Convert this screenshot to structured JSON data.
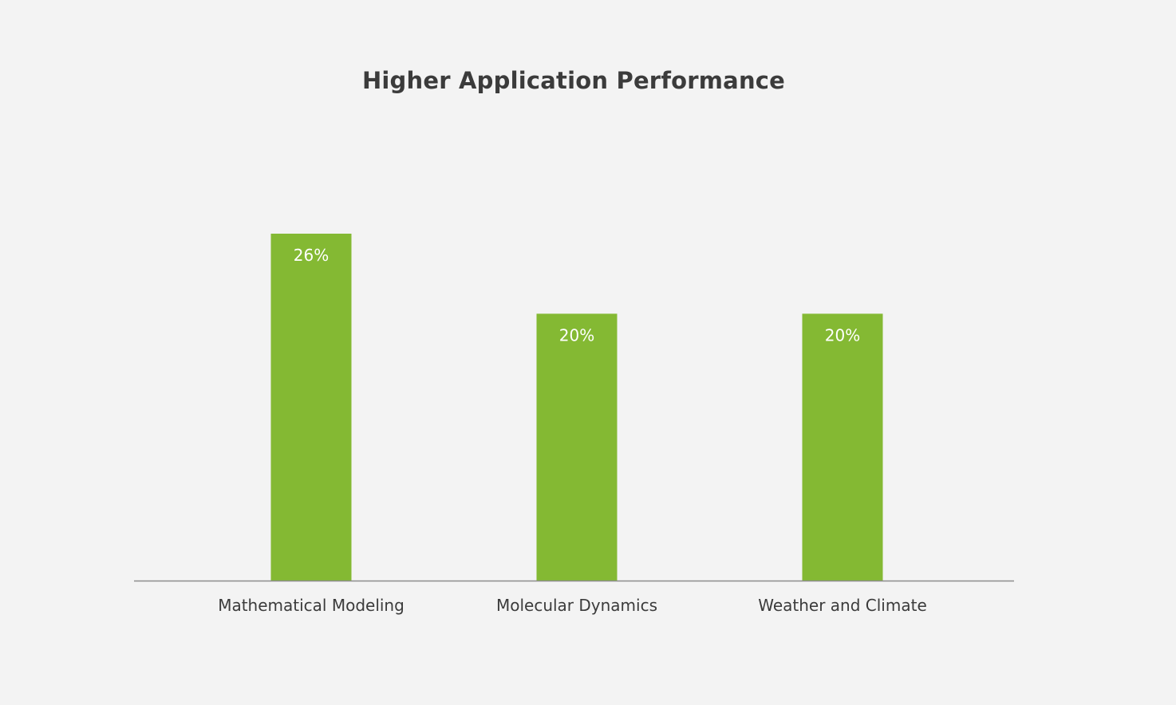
{
  "chart_data": {
    "type": "bar",
    "title": "Higher Application Performance",
    "categories": [
      "Mathematical Modeling",
      "Molecular Dynamics",
      "Weather and Climate"
    ],
    "values": [
      26,
      20,
      20
    ],
    "data_labels": [
      "26%",
      "20%",
      "20%"
    ],
    "xlabel": "",
    "ylabel": "",
    "ylim": [
      0,
      26
    ],
    "grid": false,
    "legend": "none",
    "bar_color": "#84b933",
    "axis_color": "#8c8c8c",
    "label_color": "#ffffff",
    "text_color": "#3b3b3b",
    "background": "#f3f3f3"
  }
}
